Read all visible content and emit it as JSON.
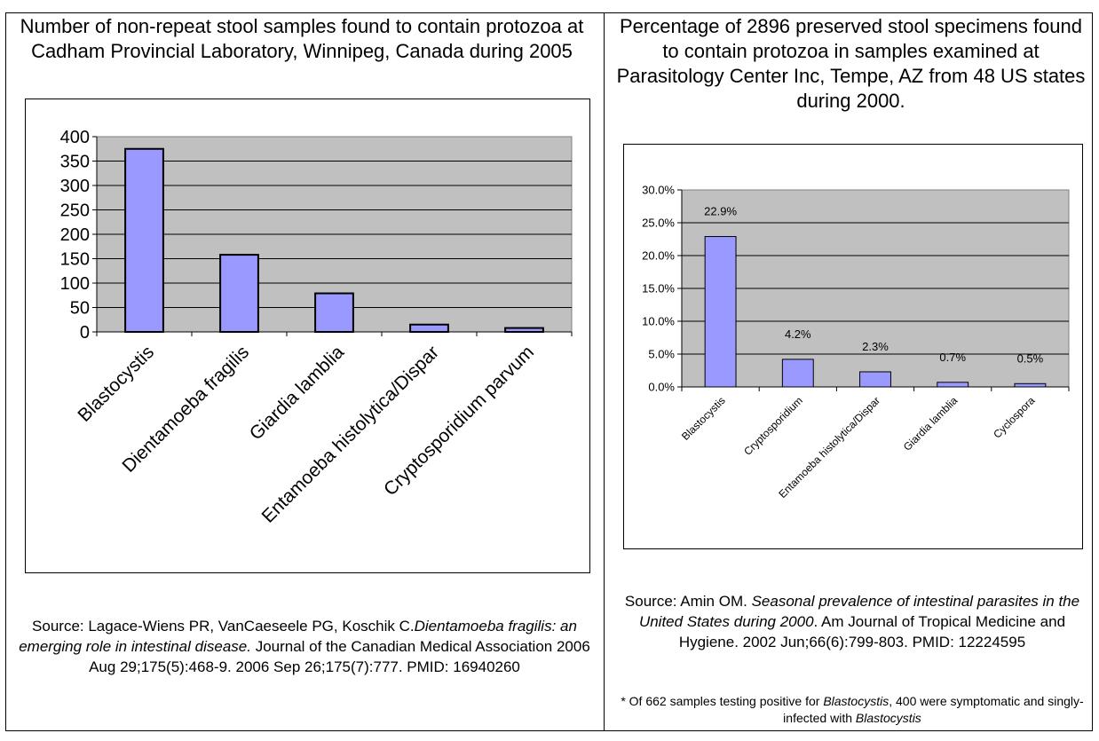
{
  "left": {
    "title": "Number of non-repeat stool samples found to contain protozoa at Cadham Provincial Laboratory, Winnipeg, Canada during 2005",
    "source_prefix": "Source: Lagace-Wiens PR, VanCaeseele PG, Koschik C.",
    "source_italic": "Dientamoeba fragilis: an emerging role in intestinal disease.",
    "source_suffix": " Journal of the Canadian Medical Association 2006 Aug 29;175(5):468-9. 2006 Sep 26;175(7):777. PMID: 16940260"
  },
  "right": {
    "title": "Percentage of 2896 preserved stool specimens found to contain protozoa in samples examined at Parasitology Center Inc, Tempe, AZ from 48 US states during 2000.",
    "source_prefix": "Source:  Amin OM. ",
    "source_italic": "Seasonal prevalence of intestinal parasites in the United States during 2000",
    "source_suffix": ". Am Journal of Tropical Medicine and Hygiene.  2002 Jun;66(6):799-803. PMID: 12224595",
    "footnote_a": "* Of 662 samples testing positive for ",
    "footnote_b": "Blastocystis",
    "footnote_c": ", 400 were symptomatic and singly-infected with ",
    "footnote_d": "Blastocystis"
  },
  "colors": {
    "bar_fill": "#9999ff",
    "plot_bg": "#c0c0c0",
    "bar_stroke": "#000000"
  },
  "chart_data": [
    {
      "type": "bar",
      "title": "Number of non-repeat stool samples found to contain protozoa at Cadham Provincial Laboratory, Winnipeg, Canada during 2005",
      "categories": [
        "Blastocystis",
        "Dientamoeba fragilis",
        "Giardia lamblia",
        "Entamoeba histolytica/Dispar",
        "Cryptosporidium parvum"
      ],
      "values": [
        375,
        158,
        79,
        15,
        8
      ],
      "ylim": [
        0,
        400
      ],
      "yticks": [
        "0",
        "50",
        "100",
        "150",
        "200",
        "250",
        "300",
        "350",
        "400"
      ],
      "grid": true,
      "xlabel": "",
      "ylabel": ""
    },
    {
      "type": "bar",
      "title": "Percentage of 2896 preserved stool specimens found to contain protozoa in samples examined at Parasitology Center Inc, Tempe, AZ from 48 US states during 2000.",
      "categories": [
        "Blastocystis",
        "Cryptosporidium",
        "Entamoeba histolytica/Dispar",
        "Giardia lamblia",
        "Cyclospora"
      ],
      "values": [
        22.9,
        4.2,
        2.3,
        0.7,
        0.5
      ],
      "data_labels": [
        "22.9%",
        "4.2%",
        "2.3%",
        "0.7%",
        "0.5%"
      ],
      "ylim": [
        0,
        30
      ],
      "yticks": [
        "0.0%",
        "5.0%",
        "10.0%",
        "15.0%",
        "20.0%",
        "25.0%",
        "30.0%"
      ],
      "grid": true,
      "xlabel": "",
      "ylabel": ""
    }
  ]
}
